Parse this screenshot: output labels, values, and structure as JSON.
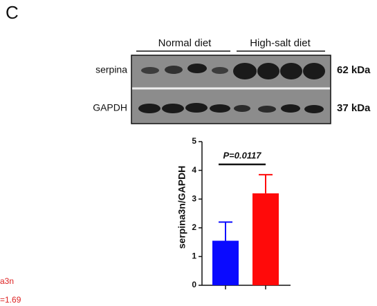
{
  "panel_label": "C",
  "blot": {
    "groups": [
      "Normal diet",
      "High-salt diet"
    ],
    "rows": [
      {
        "label": "serpina",
        "size": "62 kDa"
      },
      {
        "label": "GAPDH",
        "size": "37 kDa"
      }
    ]
  },
  "cropped_texts": [
    "a3n",
    "=1.69"
  ],
  "chart_data": {
    "type": "bar",
    "y_label": "serpina3n/GAPDH",
    "annotation": "P=0.0117",
    "categories": [
      null,
      null
    ],
    "values": [
      1.55,
      3.2
    ],
    "errors": [
      0.65,
      0.65
    ],
    "colors": [
      "#0a0aff",
      "#ff0a0a"
    ],
    "ylim": [
      0,
      5
    ],
    "yticks": [
      0,
      1,
      2,
      3,
      4,
      5
    ]
  }
}
